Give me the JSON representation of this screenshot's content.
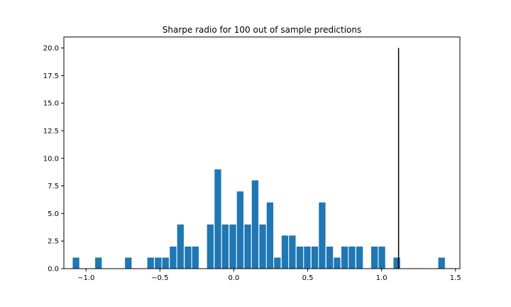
{
  "chart_data": {
    "type": "bar",
    "title": "Sharpe radio for 100 out of sample predictions",
    "xlabel": "",
    "ylabel": "",
    "xlim": [
      -1.15,
      1.53
    ],
    "ylim": [
      0,
      21
    ],
    "x_ticks": [
      -1.0,
      -0.5,
      0.0,
      0.5,
      1.0,
      1.5
    ],
    "x_tick_labels": [
      "−1.0",
      "−0.5",
      "0.0",
      "0.5",
      "1.0",
      "1.5"
    ],
    "y_ticks": [
      0,
      2.5,
      5,
      7.5,
      10,
      12.5,
      15,
      17.5,
      20
    ],
    "y_tick_labels": [
      "0.0",
      "2.5",
      "5.0",
      "7.5",
      "10.0",
      "12.5",
      "15.0",
      "17.5",
      "20.0"
    ],
    "bin_width": 0.0505,
    "bar_color": "#1f77b4",
    "vline": {
      "x": 1.115,
      "y0": 0,
      "y1": 20,
      "color": "#000000"
    },
    "x": [
      -1.068,
      -0.916,
      -0.714,
      -0.563,
      -0.512,
      -0.462,
      -0.411,
      -0.361,
      -0.31,
      -0.26,
      -0.159,
      -0.108,
      -0.058,
      -0.007,
      0.043,
      0.094,
      0.144,
      0.195,
      0.245,
      0.295,
      0.346,
      0.396,
      0.447,
      0.497,
      0.548,
      0.598,
      0.649,
      0.699,
      0.75,
      0.8,
      0.851,
      0.952,
      1.002,
      1.103,
      1.406
    ],
    "values": [
      1,
      1,
      1,
      1,
      1,
      1,
      2,
      4,
      2,
      2,
      4,
      9,
      4,
      4,
      7,
      4,
      8,
      4,
      6,
      1,
      3,
      3,
      2,
      2,
      2,
      6,
      2,
      1,
      2,
      2,
      2,
      2,
      2,
      1,
      1
    ]
  }
}
